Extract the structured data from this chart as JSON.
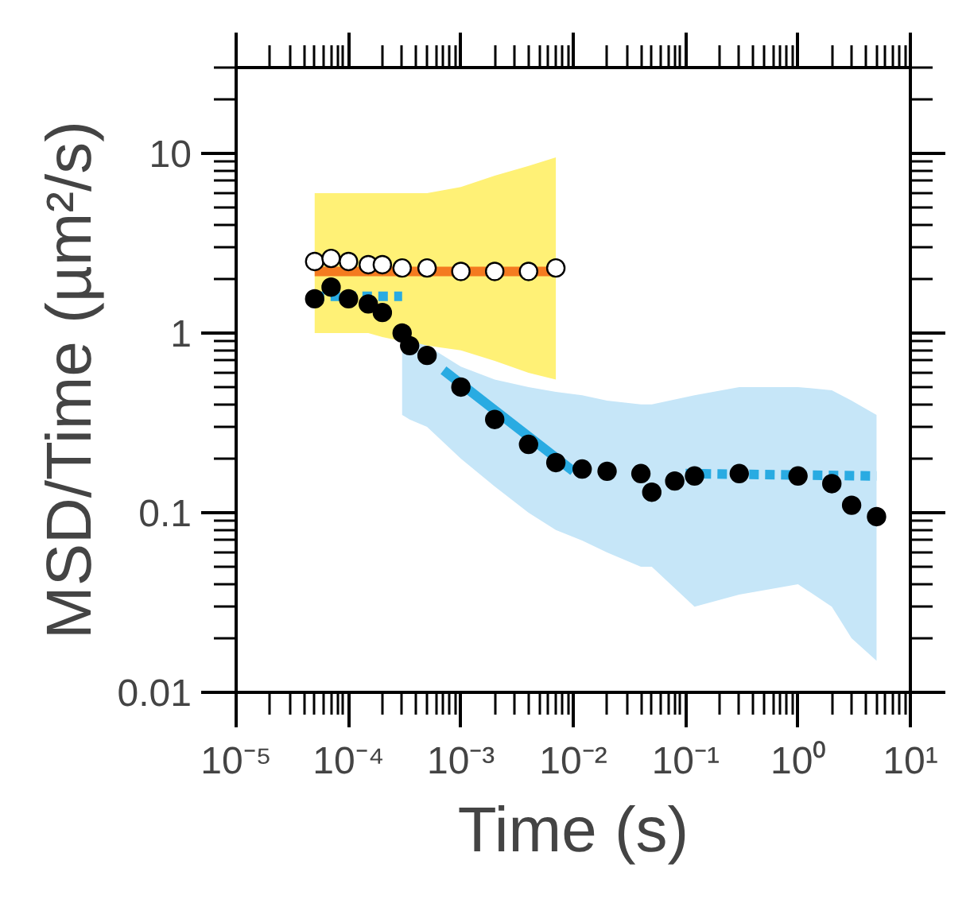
{
  "chart_data": {
    "type": "scatter",
    "xlabel": "Time (s)",
    "ylabel": "MSD/Time (µm²/s)",
    "log": "xy",
    "grid": false,
    "xlim": [
      1e-05,
      10
    ],
    "ylim": [
      0.01,
      30
    ],
    "xticks": [
      {
        "value": 1e-05,
        "label": "10⁻⁵"
      },
      {
        "value": 0.0001,
        "label": "10⁻⁴"
      },
      {
        "value": 0.001,
        "label": "10⁻³"
      },
      {
        "value": 0.01,
        "label": "10⁻²"
      },
      {
        "value": 0.1,
        "label": "10⁻¹"
      },
      {
        "value": 1,
        "label": "10⁰"
      },
      {
        "value": 10,
        "label": "10¹"
      }
    ],
    "yticks": [
      0.01,
      0.1,
      1,
      10
    ],
    "series": [
      {
        "marker": "circle",
        "color": "#ffffff",
        "x": [
          5e-05,
          7e-05,
          0.0001,
          0.00015,
          0.0002,
          0.0003,
          0.0005,
          0.001,
          0.002,
          0.004,
          0.007
        ],
        "values": [
          2.5,
          2.6,
          2.5,
          2.4,
          2.4,
          2.3,
          2.3,
          2.2,
          2.2,
          2.2,
          2.3
        ],
        "lower": [
          1.0,
          1.0,
          1.0,
          1.0,
          0.95,
          0.9,
          0.85,
          0.8,
          0.7,
          0.6,
          0.55
        ],
        "upper": [
          6,
          6,
          6,
          6,
          6,
          6,
          6,
          6.5,
          7.5,
          8.5,
          9.5
        ]
      },
      {
        "marker": "circle",
        "color": "#000000",
        "x": [
          5e-05,
          7e-05,
          0.0001,
          0.00015,
          0.0002,
          0.0003,
          0.00035,
          0.0005,
          0.001,
          0.002,
          0.004,
          0.007,
          0.012,
          0.02,
          0.04,
          0.05,
          0.08,
          0.12,
          0.3,
          1,
          2,
          3,
          5
        ],
        "values": [
          1.55,
          1.8,
          1.55,
          1.45,
          1.3,
          1.0,
          0.85,
          0.75,
          0.5,
          0.33,
          0.24,
          0.19,
          0.175,
          0.17,
          0.165,
          0.13,
          0.15,
          0.16,
          0.165,
          0.16,
          0.145,
          0.11,
          0.095
        ],
        "lower": [
          null,
          null,
          null,
          null,
          null,
          0.35,
          0.33,
          0.3,
          0.2,
          0.14,
          0.1,
          0.08,
          0.07,
          0.06,
          0.05,
          0.05,
          null,
          0.03,
          0.035,
          0.04,
          0.03,
          0.02,
          0.015
        ],
        "upper": [
          null,
          null,
          null,
          null,
          null,
          0.95,
          0.9,
          0.85,
          0.65,
          0.55,
          0.5,
          0.47,
          0.45,
          0.42,
          0.4,
          0.4,
          null,
          0.45,
          0.5,
          0.5,
          0.48,
          0.42,
          0.35
        ]
      },
      {
        "type": "line",
        "line_style": "solid",
        "color": "#f47b20",
        "x": [
          5e-05,
          0.007
        ],
        "values": [
          2.2,
          2.2
        ]
      },
      {
        "type": "line",
        "line_style": "dashed",
        "color": "#29abe2",
        "x": [
          5e-05,
          0.0003
        ],
        "values": [
          1.6,
          1.6
        ]
      },
      {
        "type": "line",
        "line_style": "solid",
        "color": "#29abe2",
        "x": [
          0.0007,
          0.01
        ],
        "values": [
          0.62,
          0.17
        ]
      },
      {
        "type": "line",
        "line_style": "dashed",
        "color": "#29abe2",
        "x": [
          0.1,
          5
        ],
        "values": [
          0.165,
          0.16
        ]
      }
    ]
  }
}
